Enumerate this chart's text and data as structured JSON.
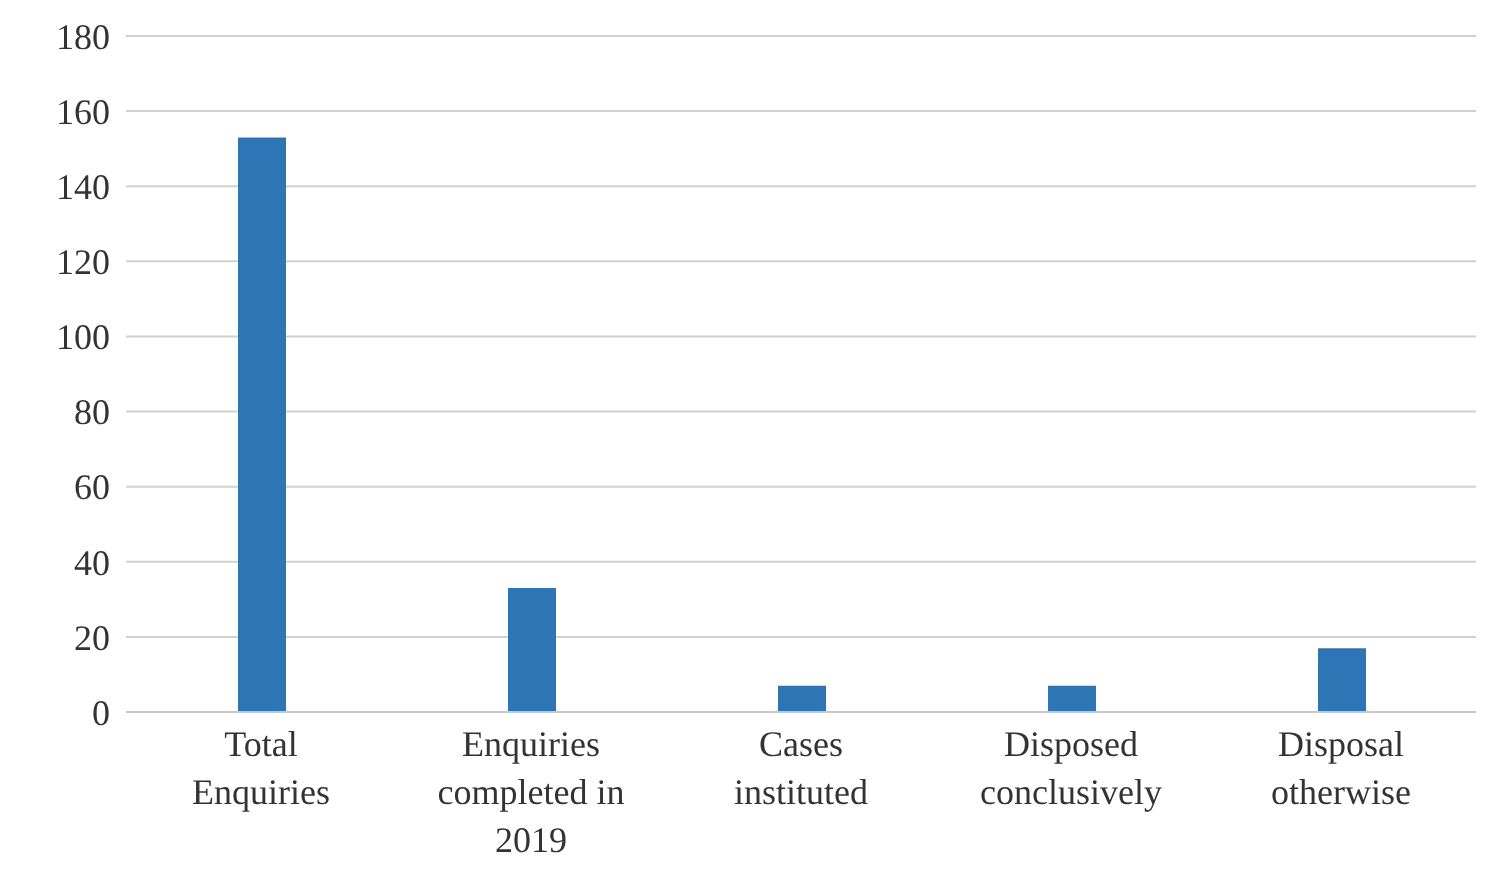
{
  "chart_data": {
    "type": "bar",
    "categories": [
      "Total Enquiries",
      "Enquiries completed in 2019",
      "Cases instituted",
      "Disposed conclusively",
      "Disposal otherwise"
    ],
    "values": [
      153,
      33,
      7,
      7,
      17
    ],
    "color": "#2e75b6",
    "ylim": [
      0,
      180
    ],
    "yticks": [
      0,
      20,
      40,
      60,
      80,
      100,
      120,
      140,
      160,
      180
    ],
    "grid": "y",
    "legend": false
  }
}
